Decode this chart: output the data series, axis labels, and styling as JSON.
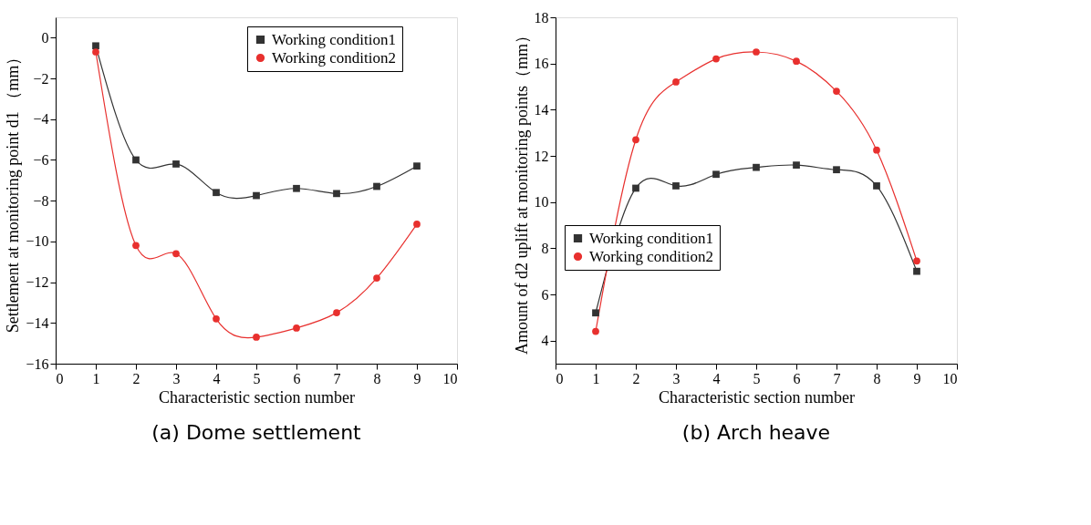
{
  "chart_data": [
    {
      "type": "line",
      "xlabel": "Characteristic section number",
      "ylabel": "Settlement at monitoring point d1 （mm）",
      "annotations": [
        "(a) Dome settlement"
      ],
      "x": [
        1,
        2,
        3,
        4,
        5,
        6,
        7,
        8,
        9
      ],
      "xlim": [
        0,
        10
      ],
      "xticks": [
        0,
        1,
        2,
        3,
        4,
        5,
        6,
        7,
        8,
        9,
        10
      ],
      "ylim": [
        -16,
        1
      ],
      "yticks": [
        -16,
        -14,
        -12,
        -10,
        -8,
        -6,
        -4,
        -2,
        0
      ],
      "grid": false,
      "legend": "top right",
      "series": [
        {
          "name": "Working condition1",
          "color": "#333333",
          "marker": "square",
          "values": [
            -0.4,
            -6.0,
            -6.2,
            -7.6,
            -7.75,
            -7.4,
            -7.65,
            -7.3,
            -6.3
          ]
        },
        {
          "name": "Working condition2",
          "color": "#e8302e",
          "marker": "circle",
          "values": [
            -0.7,
            -10.2,
            -10.6,
            -13.8,
            -14.7,
            -14.25,
            -13.5,
            -11.8,
            -9.15
          ]
        }
      ]
    },
    {
      "type": "line",
      "xlabel": "Characteristic section number",
      "ylabel": "Amount of d2 uplift at monitoring points（mm）",
      "annotations": [
        "(b) Arch heave"
      ],
      "x": [
        1,
        2,
        3,
        4,
        5,
        6,
        7,
        8,
        9
      ],
      "xlim": [
        0,
        10
      ],
      "xticks": [
        0,
        1,
        2,
        3,
        4,
        5,
        6,
        7,
        8,
        9,
        10
      ],
      "ylim": [
        3,
        18
      ],
      "yticks": [
        4,
        6,
        8,
        10,
        12,
        14,
        16,
        18
      ],
      "grid": false,
      "legend": "left",
      "series": [
        {
          "name": "Working condition1",
          "color": "#333333",
          "marker": "square",
          "values": [
            5.2,
            10.6,
            10.7,
            11.2,
            11.5,
            11.6,
            11.4,
            10.7,
            7.0
          ]
        },
        {
          "name": "Working condition2",
          "color": "#e8302e",
          "marker": "circle",
          "values": [
            4.4,
            12.7,
            15.2,
            16.2,
            16.5,
            16.1,
            14.8,
            12.25,
            7.45
          ]
        }
      ]
    }
  ]
}
